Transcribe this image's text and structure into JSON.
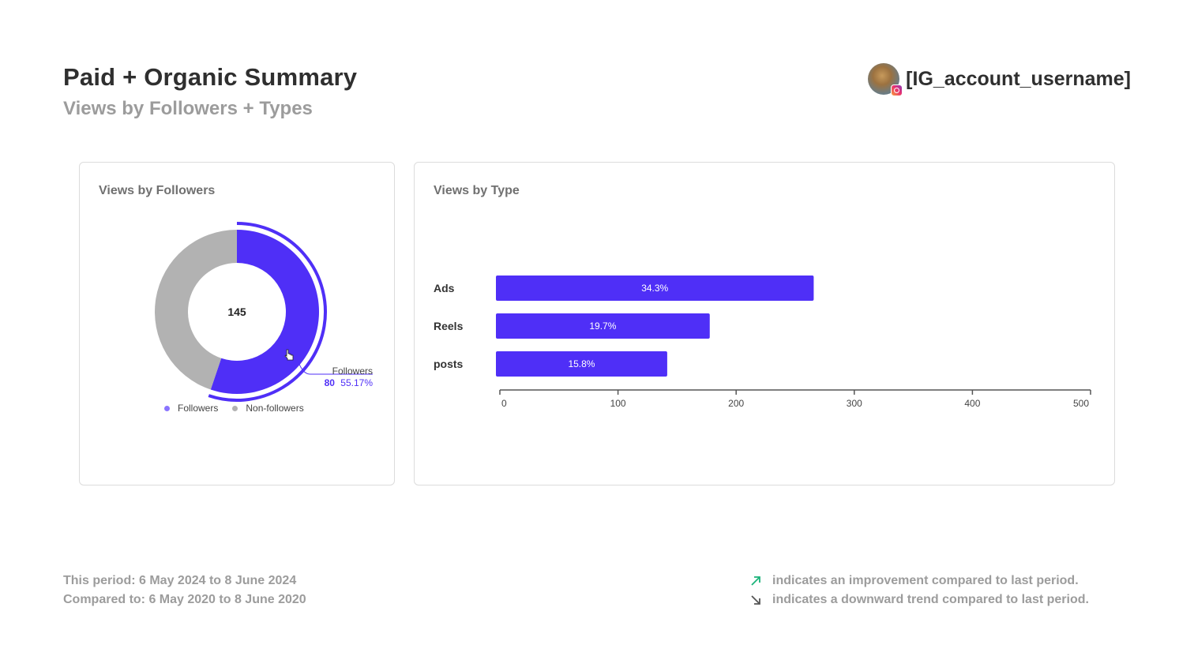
{
  "header": {
    "title": "Paid + Organic Summary",
    "subtitle": "Views by Followers + Types",
    "username": "[IG_account_username]"
  },
  "colors": {
    "accent": "#4f2ff7",
    "muted": "#b2b2b2",
    "up_arrow": "#1bb37a",
    "down_arrow": "#555555"
  },
  "followers_card": {
    "title": "Views by Followers",
    "chart_data": {
      "type": "pie",
      "total_label": "145",
      "slices": [
        {
          "name": "Followers",
          "value": 80,
          "percent": 55.17,
          "color": "#4f2ff7"
        },
        {
          "name": "Non-followers",
          "value": 65,
          "percent": 44.83,
          "color": "#b2b2b2"
        }
      ],
      "tooltip": {
        "label": "Followers",
        "value": "80",
        "percent": "55.17%"
      },
      "legend": [
        "Followers",
        "Non-followers"
      ]
    }
  },
  "type_card": {
    "title": "Views by Type",
    "chart_data": {
      "type": "bar",
      "orientation": "horizontal",
      "categories": [
        "Ads",
        "Reels",
        "posts"
      ],
      "values": [
        269,
        181,
        145
      ],
      "labels": [
        "34.3%",
        "19.7%",
        "15.8%"
      ],
      "xlim": [
        0,
        500
      ],
      "ticks": [
        "0",
        "100",
        "200",
        "300",
        "400",
        "500"
      ],
      "color": "#4f2ff7"
    }
  },
  "footer": {
    "period": "This period: 6 May 2024 to 8 June 2024",
    "compared": "Compared to: 6 May 2020 to 8 June 2020",
    "improvement_note": "indicates an improvement compared to last period.",
    "downward_note": "indicates a downward trend compared to last period."
  }
}
